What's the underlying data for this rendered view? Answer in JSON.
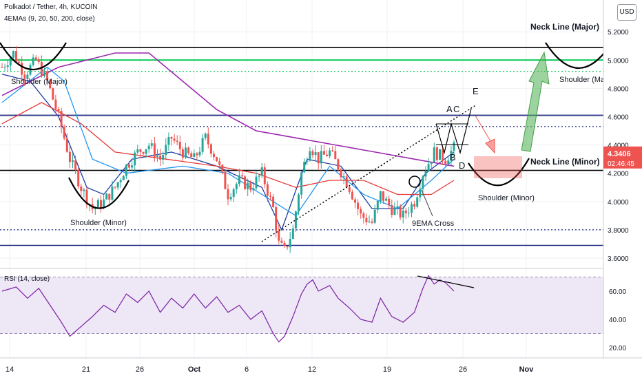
{
  "header": {
    "symbol_line": "Polkadot / Tether, 4h, KUCOIN",
    "indicator_line": "4EMAs (9, 20, 50, 200, close)",
    "currency_button": "USD"
  },
  "colors": {
    "candle_up": "#26a69a",
    "candle_down": "#ef5350",
    "ema9": "#1e3ba0",
    "ema20": "#2196f3",
    "ema50": "#e53935",
    "ema200": "#9c27b0",
    "neckline": "#000000",
    "blue_level": "#1a237e",
    "green_level": "#00c853",
    "rsi_line": "#7b1fa2",
    "rsi_band": "#ede7f6",
    "current_price_bg": "#ef5350",
    "countdown_bg": "#ef5350"
  },
  "chart_data": [
    {
      "type": "candlestick",
      "title": "Polkadot / Tether, 4h, KUCOIN",
      "x_ticks": [
        "14",
        "21",
        "26",
        "Oct",
        "6",
        "12",
        "19",
        "26",
        "Nov"
      ],
      "y_ticks": [
        "3.6000",
        "3.8000",
        "4.0000",
        "4.2000",
        "4.4000",
        "4.6000",
        "4.8000",
        "5.0000",
        "5.2000"
      ],
      "ylim": [
        3.5,
        5.25
      ],
      "current_price": "4.3406",
      "countdown": "02:46:45",
      "price_path": [
        [
          0,
          4.95
        ],
        [
          4,
          5.05
        ],
        [
          8,
          4.9
        ],
        [
          12,
          5.0
        ],
        [
          16,
          4.85
        ],
        [
          20,
          4.6
        ],
        [
          24,
          4.3
        ],
        [
          28,
          4.1
        ],
        [
          32,
          3.95
        ],
        [
          36,
          4.0
        ],
        [
          40,
          4.1
        ],
        [
          44,
          4.25
        ],
        [
          48,
          4.35
        ],
        [
          52,
          4.4
        ],
        [
          56,
          4.3
        ],
        [
          60,
          4.45
        ],
        [
          64,
          4.35
        ],
        [
          68,
          4.3
        ],
        [
          72,
          4.45
        ],
        [
          76,
          4.3
        ],
        [
          80,
          4.05
        ],
        [
          84,
          4.15
        ],
        [
          88,
          4.1
        ],
        [
          92,
          4.2
        ],
        [
          96,
          3.95
        ],
        [
          98,
          3.7
        ],
        [
          100,
          3.65
        ],
        [
          103,
          3.8
        ],
        [
          106,
          4.2
        ],
        [
          109,
          4.4
        ],
        [
          112,
          4.3
        ],
        [
          116,
          4.35
        ],
        [
          119,
          4.25
        ],
        [
          123,
          4.1
        ],
        [
          127,
          3.9
        ],
        [
          131,
          3.85
        ],
        [
          134,
          4.05
        ],
        [
          138,
          3.95
        ],
        [
          142,
          3.9
        ],
        [
          146,
          4.0
        ],
        [
          149,
          4.2
        ],
        [
          153,
          4.35
        ],
        [
          157,
          4.3
        ],
        [
          160,
          4.38
        ]
      ],
      "ema_lines": [
        {
          "name": "EMA 9",
          "points": [
            [
              0,
              4.9
            ],
            [
              10,
              4.85
            ],
            [
              20,
              4.6
            ],
            [
              30,
              4.1
            ],
            [
              36,
              4.05
            ],
            [
              46,
              4.3
            ],
            [
              60,
              4.35
            ],
            [
              76,
              4.25
            ],
            [
              92,
              4.1
            ],
            [
              99,
              3.8
            ],
            [
              108,
              4.3
            ],
            [
              120,
              4.25
            ],
            [
              131,
              3.95
            ],
            [
              142,
              3.95
            ],
            [
              150,
              4.2
            ],
            [
              160,
              4.35
            ]
          ]
        },
        {
          "name": "EMA 20",
          "points": [
            [
              0,
              4.7
            ],
            [
              16,
              4.95
            ],
            [
              22,
              4.85
            ],
            [
              32,
              4.3
            ],
            [
              44,
              4.2
            ],
            [
              64,
              4.25
            ],
            [
              80,
              4.2
            ],
            [
              96,
              4.0
            ],
            [
              104,
              3.9
            ],
            [
              116,
              4.25
            ],
            [
              128,
              4.05
            ],
            [
              140,
              3.95
            ],
            [
              152,
              4.15
            ],
            [
              160,
              4.3
            ]
          ]
        },
        {
          "name": "EMA 50",
          "points": [
            [
              0,
              4.55
            ],
            [
              14,
              4.7
            ],
            [
              28,
              4.55
            ],
            [
              40,
              4.35
            ],
            [
              58,
              4.3
            ],
            [
              76,
              4.25
            ],
            [
              90,
              4.2
            ],
            [
              104,
              4.1
            ],
            [
              116,
              4.15
            ],
            [
              128,
              4.15
            ],
            [
              140,
              4.05
            ],
            [
              152,
              4.05
            ],
            [
              160,
              4.15
            ]
          ]
        },
        {
          "name": "EMA 200",
          "points": [
            [
              0,
              4.75
            ],
            [
              20,
              4.95
            ],
            [
              40,
              5.05
            ],
            [
              52,
              5.05
            ],
            [
              64,
              4.85
            ],
            [
              76,
              4.65
            ],
            [
              90,
              4.5
            ],
            [
              104,
              4.45
            ],
            [
              118,
              4.4
            ],
            [
              132,
              4.35
            ],
            [
              146,
              4.3
            ],
            [
              160,
              4.25
            ]
          ]
        }
      ],
      "levels": [
        {
          "kind": "neck-major",
          "price": 5.09,
          "style": "solid"
        },
        {
          "kind": "green",
          "price": 5.0,
          "style": "solid"
        },
        {
          "kind": "green-dotted",
          "price": 4.92,
          "style": "dotted"
        },
        {
          "kind": "blue",
          "price": 4.61,
          "style": "solid"
        },
        {
          "kind": "blue-dotted",
          "price": 4.53,
          "style": "dotted"
        },
        {
          "kind": "neck-minor",
          "price": 4.22,
          "style": "solid"
        },
        {
          "kind": "blue-dotted",
          "price": 3.8,
          "style": "dotted"
        },
        {
          "kind": "blue",
          "price": 3.69,
          "style": "solid"
        }
      ],
      "annotations": {
        "neck_line_major": "Neck Line (Major)",
        "neck_line_minor": "Neck Line (Minor)",
        "shoulder_major_left": "Shoulder (Major)",
        "shoulder_major_right": "Shoulder (Maj",
        "shoulder_minor_left": "Shoulder (Minor)",
        "shoulder_minor_right": "Shoulder (Minor)",
        "ema_cross": "9EMA Cross",
        "point_a": "A",
        "point_c": "C",
        "point_b": "B",
        "point_d": "D",
        "point_e": "E"
      }
    },
    {
      "type": "line",
      "title": "RSI (14, close)",
      "y_ticks": [
        "20.00",
        "40.00",
        "60.00"
      ],
      "ylim": [
        15,
        74
      ],
      "band": [
        30,
        70
      ],
      "points": [
        [
          0,
          60
        ],
        [
          5,
          63
        ],
        [
          9,
          55
        ],
        [
          13,
          62
        ],
        [
          17,
          50
        ],
        [
          21,
          38
        ],
        [
          24,
          28
        ],
        [
          28,
          35
        ],
        [
          32,
          42
        ],
        [
          36,
          50
        ],
        [
          40,
          45
        ],
        [
          44,
          58
        ],
        [
          48,
          52
        ],
        [
          52,
          60
        ],
        [
          56,
          45
        ],
        [
          60,
          55
        ],
        [
          64,
          48
        ],
        [
          68,
          58
        ],
        [
          72,
          48
        ],
        [
          76,
          56
        ],
        [
          80,
          45
        ],
        [
          84,
          50
        ],
        [
          88,
          40
        ],
        [
          92,
          46
        ],
        [
          96,
          30
        ],
        [
          98,
          24
        ],
        [
          100,
          28
        ],
        [
          103,
          42
        ],
        [
          106,
          58
        ],
        [
          108,
          65
        ],
        [
          110,
          68
        ],
        [
          112,
          60
        ],
        [
          116,
          64
        ],
        [
          119,
          55
        ],
        [
          123,
          48
        ],
        [
          127,
          40
        ],
        [
          131,
          38
        ],
        [
          134,
          55
        ],
        [
          138,
          42
        ],
        [
          142,
          38
        ],
        [
          146,
          45
        ],
        [
          149,
          62
        ],
        [
          151,
          71
        ],
        [
          153,
          65
        ],
        [
          155,
          68
        ],
        [
          157,
          66
        ],
        [
          160,
          60
        ]
      ]
    }
  ]
}
